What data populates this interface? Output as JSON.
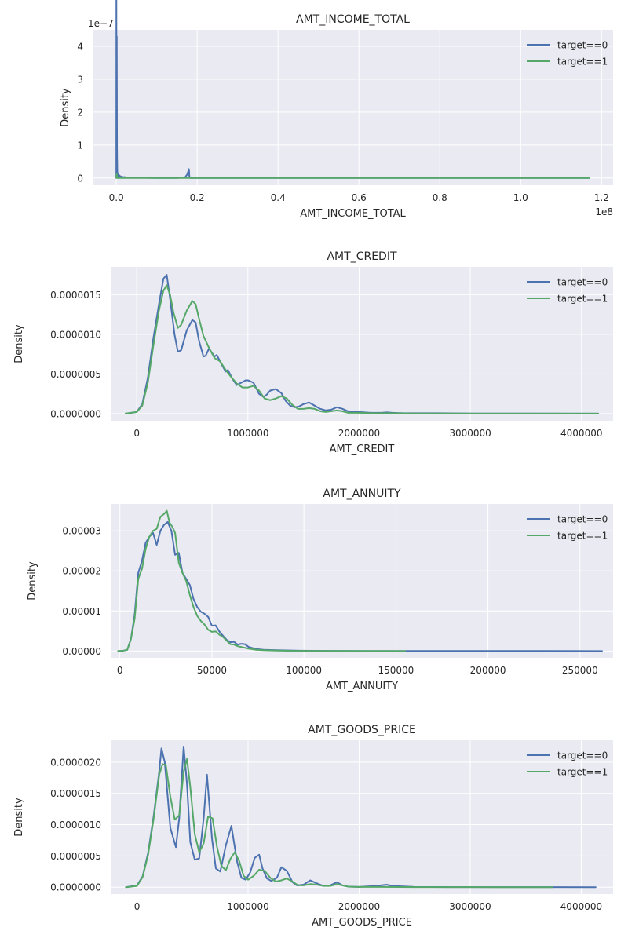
{
  "chart_data": [
    {
      "type": "line",
      "title": "AMT_INCOME_TOTAL",
      "xlabel": "AMT_INCOME_TOTAL",
      "ylabel": "Density",
      "x_multiplier": "1e8",
      "y_multiplier": "1e−7",
      "xlim": [
        -5850000,
        122850000
      ],
      "ylim": [
        -2.2e-08,
        4.5e-07
      ],
      "xticks": [
        0,
        20000000,
        40000000,
        60000000,
        80000000,
        100000000,
        120000000
      ],
      "xtick_labels": [
        "0.0",
        "0.2",
        "0.4",
        "0.6",
        "0.8",
        "1.0",
        "1.2"
      ],
      "yticks": [
        0,
        1e-07,
        2e-07,
        3e-07,
        4e-07
      ],
      "ytick_labels": [
        "0",
        "1",
        "2",
        "3",
        "4"
      ],
      "grid": true,
      "legend_position": "top-right",
      "series": [
        {
          "name": "target==0",
          "color": "#4C72B0",
          "x": [
            0,
            20000,
            40000,
            60000,
            80000,
            100000,
            120000,
            140000,
            160000,
            180000,
            200000,
            220000,
            240000,
            260000,
            280000,
            300000,
            320000,
            340000,
            360000,
            400000,
            500000,
            700000,
            1000000,
            1500000,
            2500000,
            5000000,
            10000000,
            15000000,
            17000000,
            17500000,
            17800000,
            17950000,
            18000000,
            18050000,
            18150000,
            18300000,
            25000000,
            40000000,
            60000000,
            80000000,
            100000000,
            117000000
          ],
          "y": [
            0,
            5.5e-07,
            3.4e-07,
            2e-08,
            1e-08,
            2.2e-07,
            4.3e-07,
            3.1e-07,
            1.9e-07,
            9e-08,
            6e-08,
            5e-08,
            3e-08,
            2e-08,
            1.5e-08,
            1e-08,
            6e-09,
            3e-09,
            0,
            2e-09,
            1.2e-08,
            8e-09,
            5e-09,
            3e-09,
            2e-09,
            1e-09,
            0,
            0,
            2e-09,
            1e-08,
            2e-08,
            2.7e-08,
            2.2e-08,
            8e-09,
            1e-09,
            0,
            0,
            0,
            0,
            0,
            0,
            0
          ]
        },
        {
          "name": "target==1",
          "color": "#55A868",
          "x": [
            0,
            20000,
            40000,
            60000,
            80000,
            100000,
            120000,
            140000,
            160000,
            180000,
            200000,
            220000,
            240000,
            260000,
            280000,
            300000,
            320000,
            340000,
            360000,
            400000,
            500000,
            700000,
            1000000,
            1500000,
            2500000,
            5000000,
            10000000,
            20000000,
            40000000,
            60000000,
            80000000,
            100000000,
            117000000
          ],
          "y": [
            0,
            2e-09,
            5e-09,
            8e-09,
            1e-08,
            1.2e-08,
            1.2e-08,
            1e-08,
            8e-09,
            5e-09,
            4e-09,
            3e-09,
            2e-09,
            2e-09,
            1e-09,
            1e-09,
            1e-09,
            0,
            0,
            0,
            0,
            0,
            0,
            0,
            0,
            0,
            0,
            0,
            0,
            0,
            0,
            0,
            0
          ]
        }
      ]
    },
    {
      "type": "line",
      "title": "AMT_CREDIT",
      "xlabel": "AMT_CREDIT",
      "ylabel": "Density",
      "xlim": [
        -234000,
        4284000
      ],
      "ylim": [
        -9e-08,
        1.85e-06
      ],
      "xticks": [
        0,
        1000000,
        2000000,
        3000000,
        4000000
      ],
      "xtick_labels": [
        "0",
        "1000000",
        "2000000",
        "3000000",
        "4000000"
      ],
      "yticks": [
        0,
        5e-07,
        1e-06,
        1.5e-06
      ],
      "ytick_labels": [
        "0.0000000",
        "0.0000005",
        "0.0000010",
        "0.0000015"
      ],
      "grid": true,
      "legend_position": "top-right",
      "series": [
        {
          "name": "target==0",
          "color": "#4C72B0",
          "x": [
            -100000,
            0,
            50000,
            100000,
            150000,
            200000,
            240000,
            270000,
            300000,
            340000,
            370000,
            400000,
            450000,
            500000,
            530000,
            560000,
            600000,
            620000,
            650000,
            700000,
            720000,
            760000,
            800000,
            820000,
            860000,
            900000,
            940000,
            980000,
            1000000,
            1050000,
            1100000,
            1140000,
            1170000,
            1200000,
            1250000,
            1300000,
            1340000,
            1380000,
            1420000,
            1460000,
            1500000,
            1550000,
            1600000,
            1650000,
            1700000,
            1750000,
            1800000,
            1850000,
            1900000,
            1950000,
            2000000,
            2100000,
            2200000,
            2250000,
            2300000,
            2400000,
            2500000,
            2700000,
            3000000,
            3500000,
            4150000
          ],
          "y": [
            0,
            2e-08,
            1.2e-07,
            4.5e-07,
            9.5e-07,
            1.38e-06,
            1.7e-06,
            1.75e-06,
            1.45e-06,
            1e-06,
            7.8e-07,
            8e-07,
            1.05e-06,
            1.18e-06,
            1.15e-06,
            9.2e-07,
            7.2e-07,
            7.3e-07,
            8.2e-07,
            7.2e-07,
            7.4e-07,
            6.3e-07,
            5.3e-07,
            5.5e-07,
            4.4e-07,
            3.6e-07,
            3.9e-07,
            4.2e-07,
            4.2e-07,
            3.9e-07,
            2.5e-07,
            2.1e-07,
            2.4e-07,
            2.9e-07,
            3.1e-07,
            2.6e-07,
            1.6e-07,
            1e-07,
            8e-08,
            9e-08,
            1.2e-07,
            1.4e-07,
            1e-07,
            6e-08,
            4e-08,
            5e-08,
            8e-08,
            6e-08,
            3e-08,
            2e-08,
            2e-08,
            1e-08,
            1e-08,
            1.5e-08,
            1e-08,
            5e-09,
            5e-09,
            5e-09,
            2e-09,
            1e-09,
            0
          ]
        },
        {
          "name": "target==1",
          "color": "#55A868",
          "x": [
            -100000,
            0,
            50000,
            100000,
            150000,
            200000,
            240000,
            270000,
            300000,
            330000,
            370000,
            400000,
            450000,
            500000,
            530000,
            560000,
            600000,
            650000,
            700000,
            750000,
            800000,
            850000,
            900000,
            950000,
            1000000,
            1050000,
            1100000,
            1150000,
            1200000,
            1250000,
            1300000,
            1350000,
            1400000,
            1450000,
            1500000,
            1550000,
            1600000,
            1650000,
            1700000,
            1750000,
            1800000,
            1850000,
            1900000,
            2000000,
            2100000,
            2200000,
            2300000,
            2500000,
            2700000,
            3000000,
            3500000,
            4150000
          ],
          "y": [
            0,
            2e-08,
            1e-07,
            3.9e-07,
            8.6e-07,
            1.3e-06,
            1.55e-06,
            1.62e-06,
            1.5e-06,
            1.28e-06,
            1.08e-06,
            1.12e-06,
            1.3e-06,
            1.42e-06,
            1.38e-06,
            1.2e-06,
            9.8e-07,
            8.3e-07,
            7e-07,
            6.6e-07,
            5.5e-07,
            4.6e-07,
            3.8e-07,
            3.3e-07,
            3.3e-07,
            3.5e-07,
            2.9e-07,
            1.9e-07,
            1.7e-07,
            1.9e-07,
            2.2e-07,
            1.9e-07,
            1.1e-07,
            6e-08,
            6e-08,
            7e-08,
            6e-08,
            3e-08,
            2e-08,
            3e-08,
            4e-08,
            3e-08,
            1e-08,
            1e-08,
            5e-09,
            5e-09,
            5e-09,
            2e-09,
            1e-09,
            0,
            0,
            0
          ]
        }
      ]
    },
    {
      "type": "line",
      "title": "AMT_ANNUITY",
      "xlabel": "AMT_ANNUITY",
      "ylabel": "Density",
      "xlim": [
        -5000,
        268000
      ],
      "ylim": [
        -1.7e-06,
        3.67e-05
      ],
      "xticks": [
        0,
        50000,
        100000,
        150000,
        200000,
        250000
      ],
      "xtick_labels": [
        "0",
        "50000",
        "100000",
        "150000",
        "200000",
        "250000"
      ],
      "yticks": [
        0,
        1e-05,
        2e-05,
        3e-05
      ],
      "ytick_labels": [
        "0.00000",
        "0.00001",
        "0.00002",
        "0.00003"
      ],
      "grid": true,
      "legend_position": "top-right",
      "series": [
        {
          "name": "target==0",
          "color": "#4C72B0",
          "x": [
            -1000,
            2000,
            4000,
            6000,
            8000,
            10000,
            12000,
            14000,
            16000,
            18000,
            20000,
            22000,
            24000,
            26000,
            28000,
            30000,
            32000,
            34000,
            36000,
            38000,
            40000,
            42000,
            44000,
            46000,
            48000,
            50000,
            52000,
            54000,
            56000,
            58000,
            60000,
            62000,
            64000,
            66000,
            68000,
            70000,
            74000,
            78000,
            85000,
            95000,
            110000,
            130000,
            160000,
            200000,
            230000,
            262000
          ],
          "y": [
            0,
            1e-07,
            3e-07,
            3e-06,
            9e-06,
            1.95e-05,
            2.25e-05,
            2.7e-05,
            2.85e-05,
            2.95e-05,
            2.65e-05,
            3e-05,
            3.15e-05,
            3.22e-05,
            3e-05,
            2.4e-05,
            2.45e-05,
            1.95e-05,
            1.8e-05,
            1.65e-05,
            1.3e-05,
            1.1e-05,
            9.8e-06,
            9.3e-06,
            8.5e-06,
            6.3e-06,
            6.4e-06,
            4.9e-06,
            3.8e-06,
            2.8e-06,
            2.2e-06,
            2.3e-06,
            1.6e-06,
            1.8e-06,
            1.7e-06,
            1e-06,
            5e-07,
            3e-07,
            2e-07,
            1e-07,
            5e-08,
            2e-08,
            1e-08,
            5e-09,
            2e-08,
            0
          ]
        },
        {
          "name": "target==1",
          "color": "#55A868",
          "x": [
            -1000,
            2000,
            4000,
            6000,
            8000,
            10000,
            12000,
            14000,
            16000,
            18000,
            20000,
            22000,
            24000,
            25500,
            27000,
            28500,
            30000,
            32000,
            34000,
            36000,
            38000,
            40000,
            42000,
            44000,
            46000,
            48000,
            50000,
            52000,
            54000,
            56000,
            58000,
            60000,
            62000,
            64000,
            66000,
            68000,
            70000,
            74000,
            78000,
            85000,
            95000,
            110000,
            130000,
            155000
          ],
          "y": [
            0,
            1e-07,
            3e-07,
            3e-06,
            8e-06,
            1.8e-05,
            2.05e-05,
            2.55e-05,
            2.85e-05,
            3e-05,
            3.05e-05,
            3.35e-05,
            3.42e-05,
            3.5e-05,
            3.2e-05,
            3.1e-05,
            2.95e-05,
            2.2e-05,
            1.95e-05,
            1.75e-05,
            1.4e-05,
            1.1e-05,
            8.8e-06,
            7.5e-06,
            6.6e-06,
            5.3e-06,
            4.8e-06,
            4.9e-06,
            4.1e-06,
            3.5e-06,
            2.6e-06,
            1.7e-06,
            1.6e-06,
            1.2e-06,
            1e-06,
            8e-07,
            6e-07,
            3e-07,
            2e-07,
            1e-07,
            5e-08,
            2e-08,
            1e-08,
            0
          ]
        }
      ]
    },
    {
      "type": "line",
      "title": "AMT_GOODS_PRICE",
      "xlabel": "AMT_GOODS_PRICE",
      "ylabel": "Density",
      "xlim": [
        -237000,
        4287000
      ],
      "ylim": [
        -1.1e-07,
        2.35e-06
      ],
      "xticks": [
        0,
        1000000,
        2000000,
        3000000,
        4000000
      ],
      "xtick_labels": [
        "0",
        "1000000",
        "2000000",
        "3000000",
        "4000000"
      ],
      "yticks": [
        0,
        5e-07,
        1e-06,
        1.5e-06,
        2e-06
      ],
      "ytick_labels": [
        "0.0000000",
        "0.0000005",
        "0.0000010",
        "0.0000015",
        "0.0000020"
      ],
      "grid": true,
      "legend_position": "top-right",
      "series": [
        {
          "name": "target==0",
          "color": "#4C72B0",
          "x": [
            -100000,
            0,
            50000,
            100000,
            150000,
            200000,
            220000,
            250000,
            300000,
            350000,
            380000,
            420000,
            450000,
            480000,
            520000,
            560000,
            600000,
            630000,
            675000,
            710000,
            750000,
            800000,
            850000,
            900000,
            940000,
            980000,
            1020000,
            1060000,
            1100000,
            1130000,
            1170000,
            1210000,
            1260000,
            1300000,
            1350000,
            1400000,
            1440000,
            1500000,
            1560000,
            1620000,
            1680000,
            1740000,
            1800000,
            1850000,
            1900000,
            2000000,
            2150000,
            2250000,
            2300000,
            2500000,
            2800000,
            3200000,
            3700000,
            4130000
          ],
          "y": [
            0,
            3e-08,
            1.7e-07,
            5.5e-07,
            1.14e-06,
            1.85e-06,
            2.22e-06,
            2e-06,
            9.5e-07,
            6.4e-07,
            1.1e-06,
            2.25e-06,
            1.65e-06,
            7.2e-07,
            4.4e-07,
            4.6e-07,
            1.1e-06,
            1.8e-06,
            7.8e-07,
            3e-07,
            2.5e-07,
            6.7e-07,
            9.8e-07,
            4.2e-07,
            1.5e-07,
            1.2e-07,
            2.4e-07,
            4.7e-07,
            5.2e-07,
            3e-07,
            1.4e-07,
            1e-07,
            1.5e-07,
            3.2e-07,
            2.6e-07,
            8e-08,
            3e-08,
            4e-08,
            1.1e-07,
            6e-08,
            2e-08,
            3e-08,
            8e-08,
            3e-08,
            1e-08,
            5e-09,
            2e-08,
            4e-08,
            2e-08,
            5e-09,
            2e-09,
            1e-09,
            1e-09,
            0
          ]
        },
        {
          "name": "target==1",
          "color": "#55A868",
          "x": [
            -100000,
            0,
            50000,
            100000,
            150000,
            200000,
            230000,
            260000,
            300000,
            340000,
            380000,
            420000,
            450000,
            480000,
            520000,
            560000,
            600000,
            640000,
            680000,
            720000,
            760000,
            800000,
            840000,
            880000,
            920000,
            960000,
            1000000,
            1050000,
            1100000,
            1150000,
            1200000,
            1250000,
            1300000,
            1350000,
            1400000,
            1450000,
            1500000,
            1560000,
            1620000,
            1680000,
            1740000,
            1800000,
            1850000,
            1900000,
            2000000,
            2200000,
            2500000,
            3000000,
            3740000
          ],
          "y": [
            0,
            2e-08,
            1.6e-07,
            5.2e-07,
            1.1e-06,
            1.8e-06,
            1.97e-06,
            1.95e-06,
            1.45e-06,
            1.08e-06,
            1.15e-06,
            1.85e-06,
            2.05e-06,
            1.6e-06,
            8.5e-07,
            5.6e-07,
            7e-07,
            1.13e-06,
            1.1e-06,
            6.5e-07,
            3.4e-07,
            2.7e-07,
            4.5e-07,
            5.6e-07,
            4.2e-07,
            1.8e-07,
            1.2e-07,
            1.8e-07,
            2.8e-07,
            2.6e-07,
            1.5e-07,
            9e-08,
            1.1e-07,
            1.4e-07,
            9e-08,
            3e-08,
            3e-08,
            5e-08,
            4e-08,
            2e-08,
            2e-08,
            5e-08,
            3e-08,
            1e-08,
            5e-09,
            5e-09,
            2e-09,
            1e-09,
            0
          ]
        }
      ]
    }
  ]
}
